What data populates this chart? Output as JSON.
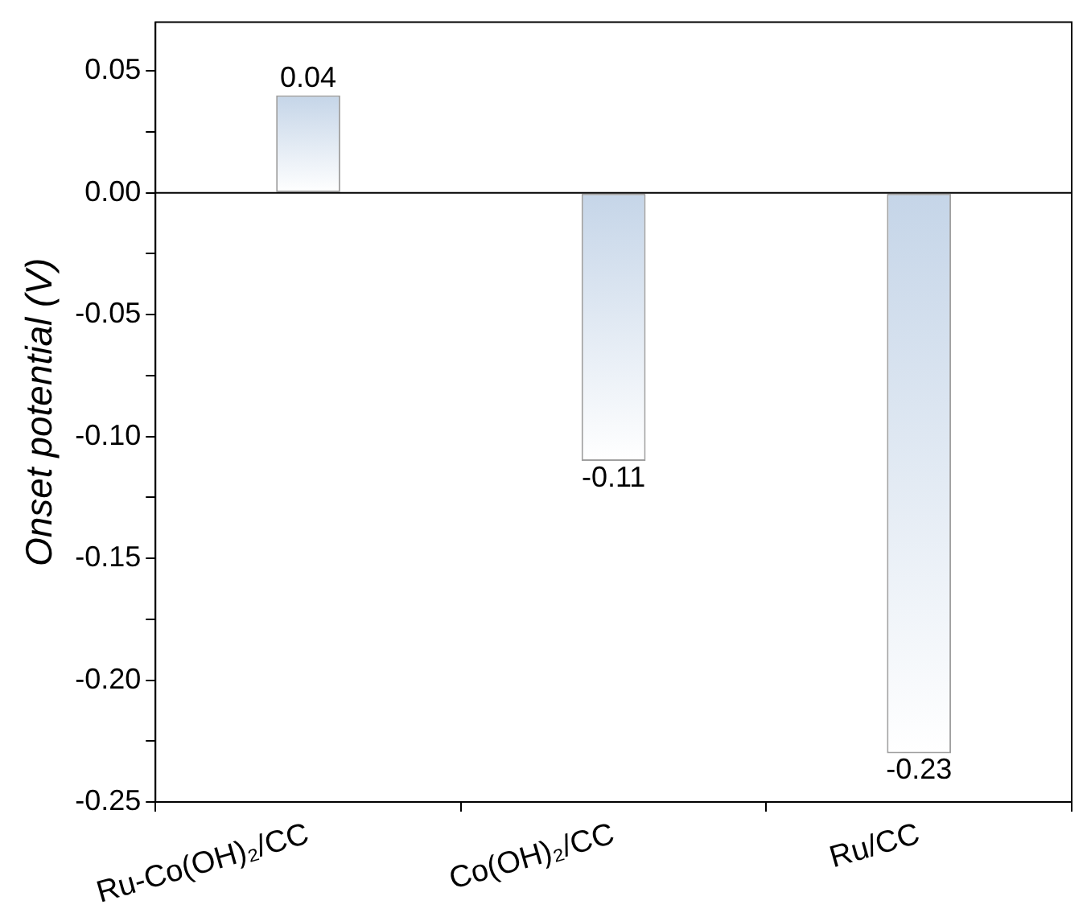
{
  "chart_data": {
    "type": "bar",
    "categories": [
      "Ru-Co(OH)₂/CC",
      "Co(OH)₂/CC",
      "Ru/CC"
    ],
    "values": [
      0.04,
      -0.11,
      -0.23
    ],
    "color": "#c5d5e8",
    "ylabel": "Onset potential (V)",
    "ylim": [
      -0.25,
      0.07
    ],
    "yticks": [
      -0.25,
      {
        "value": -0.225,
        "label": null
      },
      {
        "value": -0.2,
        "label": "-0.20"
      },
      {
        "value": -0.175,
        "label": null
      },
      -0.15,
      {
        "value": -0.125,
        "label": null
      },
      {
        "value": -0.1,
        "label": "-0.10"
      },
      {
        "value": -0.075,
        "label": null
      },
      -0.05,
      {
        "value": -0.025,
        "label": null
      },
      {
        "value": 0,
        "label": "0.00"
      },
      {
        "value": 0.025,
        "label": null
      },
      0.05
    ],
    "data_labels": true,
    "ref_lines": [
      {
        "axis": "y",
        "value": 0,
        "label": null
      }
    ]
  }
}
